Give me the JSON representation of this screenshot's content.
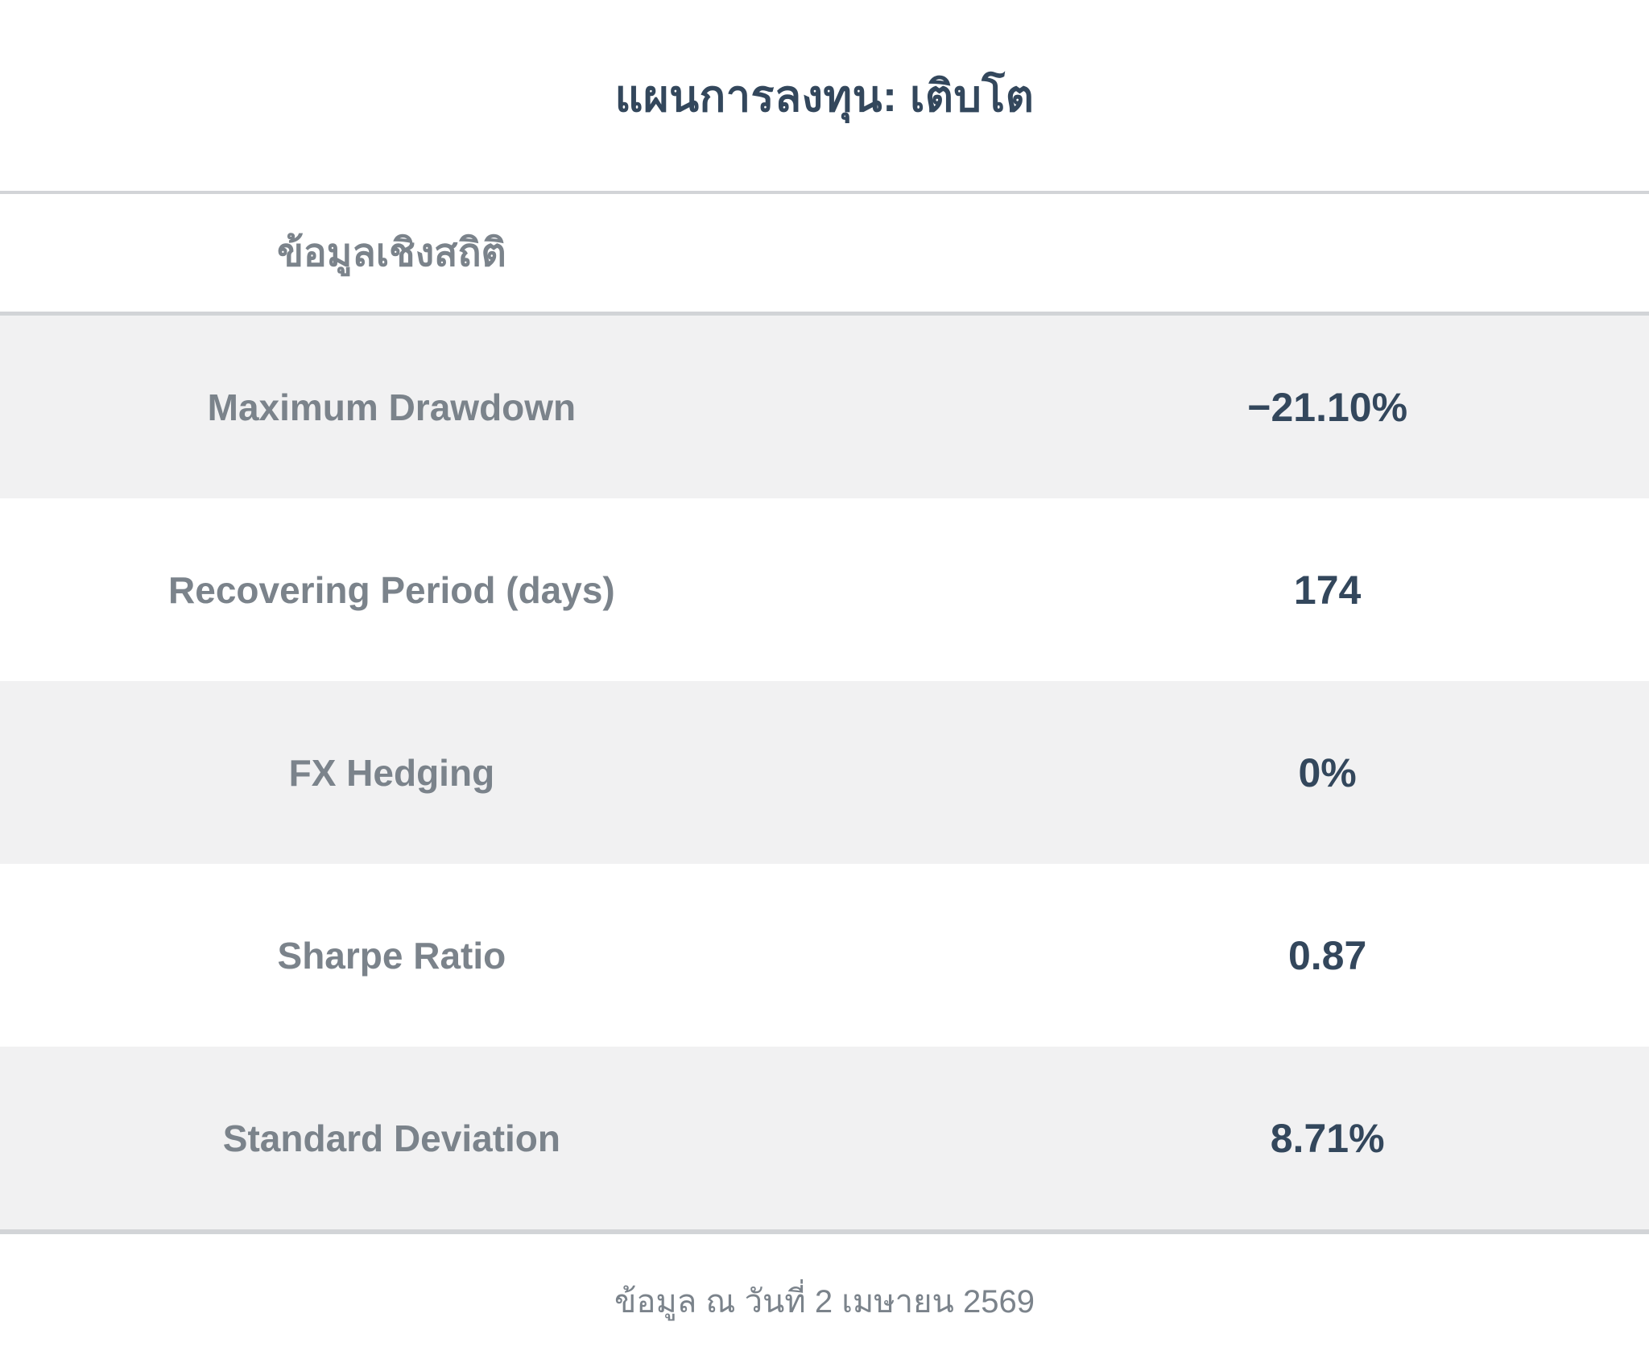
{
  "page": {
    "title": "แผนการลงทุน: เติบโต",
    "section_header": "ข้อมูลเชิงสถิติ",
    "footer_note": "ข้อมูล ณ วันที่ 2 เมษายน 2569"
  },
  "stats": [
    {
      "label": "Maximum Drawdown",
      "value": "−21.10%"
    },
    {
      "label": "Recovering Period (days)",
      "value": "174"
    },
    {
      "label": "FX Hedging",
      "value": "0%"
    },
    {
      "label": "Sharpe Ratio",
      "value": "0.87"
    },
    {
      "label": "Standard Deviation",
      "value": "8.71%"
    }
  ],
  "colors": {
    "navy_text": "#33475c",
    "grey_text": "#7b838b",
    "row_stripe_bg": "#f1f1f2",
    "divider": "#d2d4d7",
    "background": "#ffffff"
  }
}
